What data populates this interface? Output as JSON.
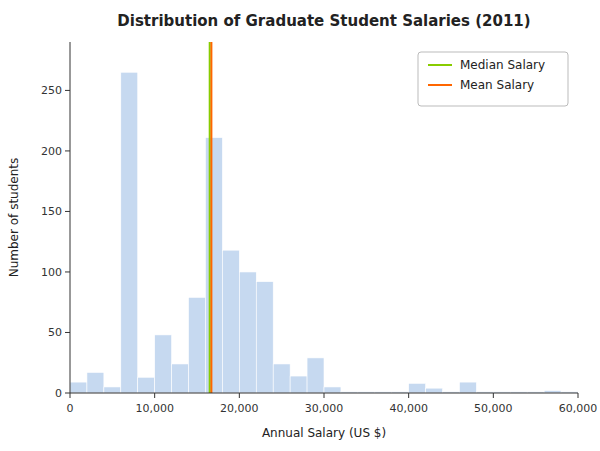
{
  "chart_data": {
    "type": "histogram",
    "title": "Distribution of Graduate Student Salaries (2011)",
    "xlabel": "Annual Salary (US $)",
    "ylabel": "Number of students",
    "bins": [
      0,
      2000,
      4000,
      6000,
      8000,
      10000,
      12000,
      14000,
      16000,
      18000,
      20000,
      22000,
      24000,
      26000,
      28000,
      30000,
      32000,
      34000,
      36000,
      38000,
      40000,
      42000,
      44000,
      46000,
      48000,
      50000,
      52000,
      54000,
      56000,
      58000,
      60000
    ],
    "values": [
      9,
      17,
      5,
      265,
      13,
      48,
      24,
      79,
      211,
      118,
      100,
      92,
      24,
      14,
      29,
      5,
      1,
      1,
      1,
      1,
      8,
      4,
      1,
      9,
      1,
      1,
      1,
      1,
      2,
      1
    ],
    "color": "#c6d9f0",
    "vlines": [
      {
        "name": "Median Salary",
        "x": 16500,
        "color": "#88cc00"
      },
      {
        "name": "Mean Salary",
        "x": 16700,
        "color": "#ff6600"
      }
    ],
    "xlim": [
      0,
      60000
    ],
    "ylim": [
      0,
      290
    ],
    "xticks": [
      0,
      {
        "value": 10000,
        "label": "10,000"
      },
      {
        "value": 20000,
        "label": "20,000"
      },
      {
        "value": 30000,
        "label": "30,000"
      },
      {
        "value": 40000,
        "label": "40,000"
      },
      {
        "value": 50000,
        "label": "50,000"
      },
      {
        "value": 60000,
        "label": "60,000"
      }
    ],
    "yticks": [
      0,
      50,
      100,
      150,
      200,
      250
    ],
    "legend": "upper right",
    "grid": false
  }
}
